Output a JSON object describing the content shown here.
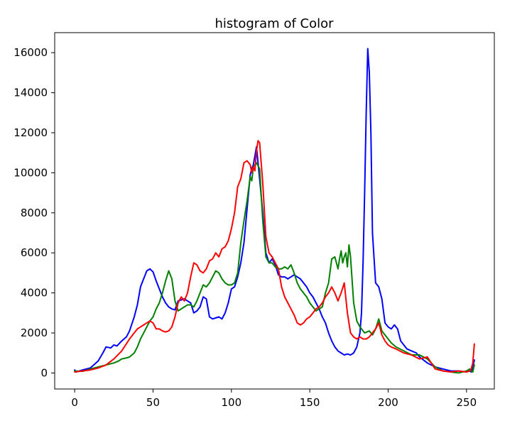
{
  "chart_data": {
    "type": "line",
    "title": "histogram of Color",
    "xlabel": "",
    "ylabel": "",
    "xlim": [
      -12.75,
      267.75
    ],
    "ylim": [
      -800,
      17000
    ],
    "xticks": [
      0,
      50,
      100,
      150,
      200,
      250
    ],
    "yticks": [
      0,
      2000,
      4000,
      6000,
      8000,
      10000,
      12000,
      14000,
      16000
    ],
    "grid": false,
    "legend": "none",
    "series": [
      {
        "color": "#0000ff",
        "x": [
          0,
          1,
          5,
          10,
          15,
          18,
          20,
          23,
          25,
          27,
          30,
          33,
          35,
          38,
          40,
          42,
          44,
          46,
          48,
          50,
          52,
          54,
          56,
          58,
          60,
          62,
          64,
          66,
          68,
          70,
          72,
          74,
          76,
          78,
          80,
          82,
          84,
          86,
          88,
          90,
          92,
          94,
          96,
          98,
          100,
          102,
          104,
          106,
          108,
          110,
          112,
          113,
          114,
          116,
          118,
          120,
          122,
          124,
          126,
          128,
          130,
          132,
          134,
          136,
          138,
          140,
          142,
          144,
          146,
          148,
          150,
          152,
          154,
          156,
          158,
          160,
          162,
          164,
          166,
          168,
          170,
          172,
          174,
          176,
          178,
          180,
          182,
          183,
          184,
          185,
          186,
          187,
          188,
          189,
          190,
          192,
          194,
          196,
          198,
          200,
          202,
          204,
          206,
          208,
          210,
          212,
          215,
          218,
          220,
          225,
          230,
          235,
          240,
          245,
          250,
          252,
          253,
          254,
          255
        ],
        "values": [
          150,
          50,
          150,
          250,
          600,
          1000,
          1300,
          1250,
          1400,
          1350,
          1600,
          1800,
          2100,
          2800,
          3400,
          4300,
          4700,
          5100,
          5200,
          5050,
          4600,
          4200,
          3800,
          3500,
          3300,
          3200,
          3150,
          3600,
          3650,
          3700,
          3600,
          3500,
          3000,
          3100,
          3300,
          3800,
          3700,
          2800,
          2700,
          2750,
          2800,
          2700,
          3000,
          3500,
          4200,
          4300,
          4800,
          5500,
          6500,
          8200,
          9900,
          10200,
          10400,
          11300,
          9700,
          8000,
          6000,
          5500,
          5700,
          5400,
          4900,
          4800,
          4800,
          4700,
          4800,
          4900,
          4800,
          4700,
          4500,
          4300,
          4000,
          3800,
          3500,
          3200,
          2800,
          2500,
          2000,
          1600,
          1300,
          1100,
          1000,
          900,
          950,
          900,
          1000,
          1300,
          2000,
          3000,
          5500,
          9000,
          13000,
          16200,
          15000,
          12000,
          7000,
          4500,
          4300,
          3700,
          2500,
          2300,
          2200,
          2400,
          2200,
          1600,
          1400,
          1200,
          1100,
          1000,
          800,
          500,
          300,
          200,
          100,
          100,
          50,
          100,
          50,
          300,
          650
        ]
      },
      {
        "color": "#008000",
        "x": [
          0,
          5,
          10,
          15,
          20,
          25,
          28,
          30,
          33,
          35,
          38,
          40,
          42,
          44,
          46,
          48,
          50,
          52,
          54,
          56,
          58,
          60,
          62,
          64,
          66,
          68,
          70,
          72,
          74,
          76,
          78,
          80,
          82,
          84,
          86,
          88,
          90,
          92,
          94,
          96,
          98,
          100,
          102,
          104,
          106,
          108,
          110,
          112,
          113,
          114,
          116,
          118,
          120,
          122,
          124,
          126,
          128,
          130,
          132,
          134,
          136,
          138,
          140,
          142,
          144,
          146,
          148,
          150,
          152,
          154,
          156,
          158,
          160,
          162,
          164,
          166,
          168,
          169,
          170,
          171,
          172,
          173,
          174,
          175,
          176,
          178,
          180,
          182,
          185,
          188,
          190,
          192,
          194,
          196,
          198,
          200,
          202,
          205,
          210,
          215,
          220,
          225,
          230,
          235,
          240,
          245,
          250,
          252,
          253,
          254,
          255
        ],
        "values": [
          100,
          80,
          200,
          300,
          400,
          500,
          600,
          700,
          750,
          800,
          1000,
          1300,
          1700,
          2000,
          2300,
          2600,
          2800,
          3200,
          3500,
          4000,
          4600,
          5100,
          4700,
          3600,
          3100,
          3200,
          3300,
          3400,
          3400,
          3300,
          3600,
          4000,
          4400,
          4300,
          4500,
          4800,
          5100,
          5000,
          4700,
          4500,
          4400,
          4400,
          4500,
          5000,
          6500,
          7600,
          8600,
          9800,
          9600,
          10300,
          10500,
          10200,
          7600,
          5800,
          5500,
          5500,
          5300,
          5200,
          5200,
          5300,
          5200,
          5400,
          5000,
          4500,
          4200,
          4000,
          3800,
          3500,
          3300,
          3100,
          3200,
          3300,
          4000,
          4500,
          5700,
          5800,
          5200,
          5700,
          6100,
          5500,
          5800,
          6000,
          5300,
          6400,
          5800,
          3500,
          2600,
          2300,
          2000,
          2100,
          1900,
          2200,
          2700,
          2100,
          1900,
          1700,
          1500,
          1300,
          1100,
          900,
          900,
          700,
          300,
          100,
          50,
          0,
          100,
          200,
          100,
          50,
          400
        ]
      },
      {
        "color": "#ff0000",
        "x": [
          0,
          5,
          10,
          15,
          20,
          25,
          30,
          35,
          38,
          40,
          42,
          44,
          46,
          48,
          50,
          52,
          54,
          56,
          58,
          60,
          62,
          64,
          66,
          68,
          70,
          72,
          74,
          76,
          78,
          80,
          82,
          84,
          86,
          88,
          90,
          92,
          94,
          96,
          98,
          100,
          102,
          104,
          106,
          108,
          110,
          112,
          113,
          114,
          115,
          116,
          117,
          118,
          119,
          120,
          122,
          124,
          126,
          128,
          130,
          132,
          134,
          136,
          138,
          140,
          142,
          144,
          146,
          148,
          150,
          152,
          154,
          156,
          158,
          160,
          162,
          164,
          166,
          168,
          170,
          172,
          174,
          175,
          176,
          178,
          180,
          182,
          184,
          186,
          188,
          190,
          192,
          194,
          196,
          198,
          200,
          202,
          205,
          210,
          215,
          220,
          225,
          230,
          235,
          240,
          245,
          250,
          252,
          253,
          254,
          255
        ],
        "values": [
          50,
          100,
          150,
          250,
          400,
          700,
          1100,
          1700,
          2000,
          2200,
          2300,
          2400,
          2500,
          2600,
          2500,
          2200,
          2200,
          2100,
          2050,
          2100,
          2300,
          2800,
          3500,
          3800,
          3600,
          4000,
          4800,
          5500,
          5400,
          5100,
          5000,
          5200,
          5600,
          5700,
          6000,
          5800,
          6200,
          6300,
          6600,
          7200,
          8000,
          9300,
          9700,
          10500,
          10600,
          10400,
          10000,
          10300,
          10100,
          11100,
          11600,
          11500,
          10500,
          9500,
          6800,
          6000,
          5800,
          5500,
          5200,
          4300,
          3800,
          3500,
          3200,
          2900,
          2500,
          2400,
          2500,
          2700,
          2800,
          3000,
          3200,
          3300,
          3500,
          3800,
          4000,
          4300,
          4000,
          3600,
          4000,
          4500,
          3000,
          2500,
          2000,
          1800,
          1700,
          1800,
          1700,
          1700,
          1800,
          2000,
          2200,
          2500,
          1900,
          1600,
          1400,
          1300,
          1200,
          1000,
          900,
          700,
          800,
          200,
          100,
          50,
          100,
          50,
          100,
          200,
          500,
          1450
        ]
      }
    ]
  }
}
